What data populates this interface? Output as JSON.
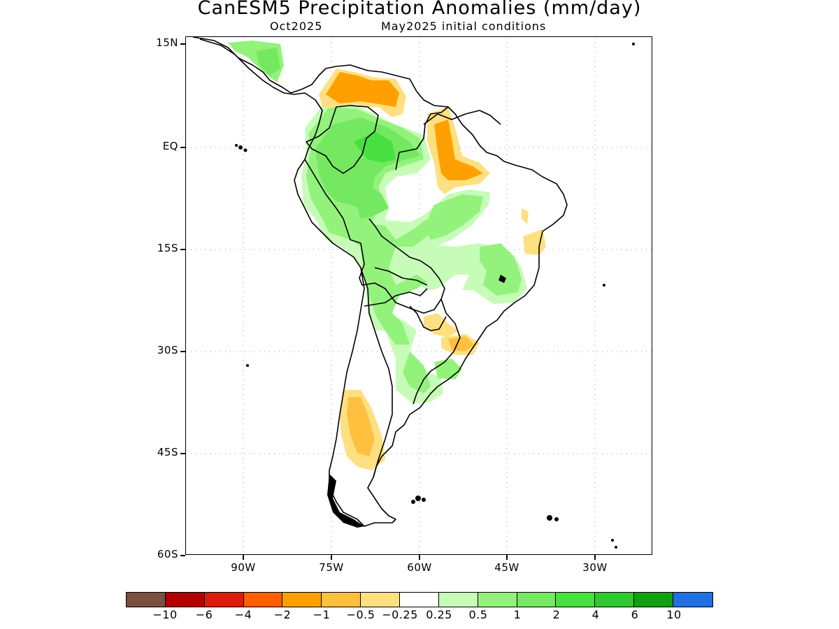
{
  "title": "CanESM5 Precipitation Anomalies (mm/day)",
  "subtitle_left": "Oct2025",
  "subtitle_right": "May2025 initial conditions",
  "lat_labels": [
    "15N",
    "EQ",
    "15S",
    "30S",
    "45S",
    "60S"
  ],
  "lon_labels": [
    "90W",
    "75W",
    "60W",
    "45W",
    "30W"
  ],
  "legend": {
    "colors": [
      "#7a5040",
      "#b30000",
      "#e01a0a",
      "#ff5f00",
      "#ffa000",
      "#ffc040",
      "#ffe080",
      "#ffffff",
      "#c6fcb8",
      "#93f27c",
      "#74e860",
      "#48e040",
      "#30c830",
      "#10a010",
      "#2070e0"
    ],
    "labels": [
      "−10",
      "−6",
      "−4",
      "−2",
      "−1",
      "−0.5",
      "−0.25",
      "0.25",
      "0.5",
      "1",
      "2",
      "4",
      "6",
      "10"
    ]
  }
}
